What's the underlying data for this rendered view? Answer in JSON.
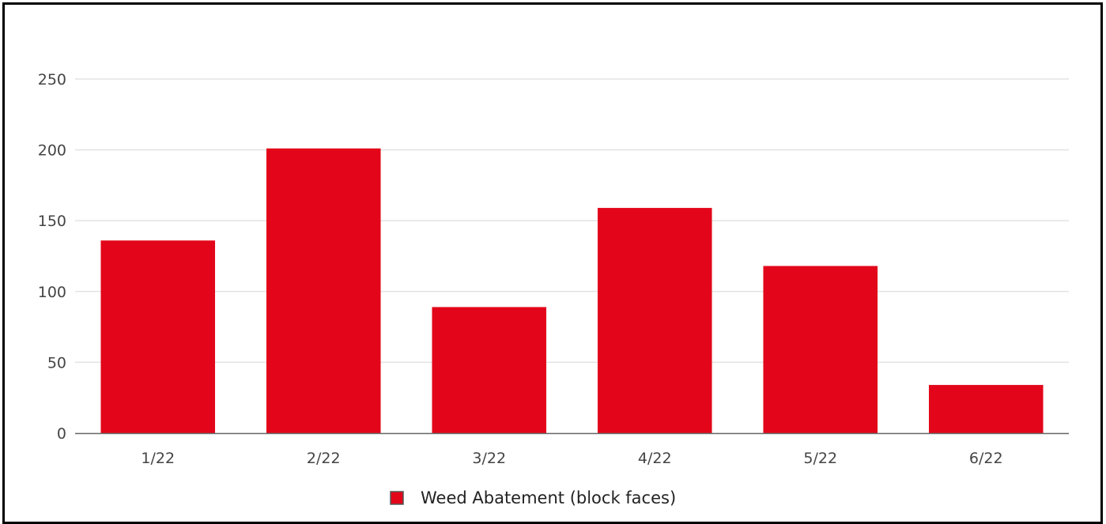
{
  "chart_data": {
    "type": "bar",
    "categories": [
      "1/22",
      "2/22",
      "3/22",
      "4/22",
      "5/22",
      "6/22"
    ],
    "series": [
      {
        "name": "Weed Abatement (block faces)",
        "values": [
          136,
          201,
          89,
          159,
          118,
          34
        ],
        "color": "#e3061a"
      }
    ],
    "title": "",
    "xlabel": "",
    "ylabel": "",
    "ylim": [
      0,
      250
    ],
    "yticks": [
      0,
      50,
      100,
      150,
      200,
      250
    ],
    "grid": true,
    "legend_position": "bottom-center"
  }
}
